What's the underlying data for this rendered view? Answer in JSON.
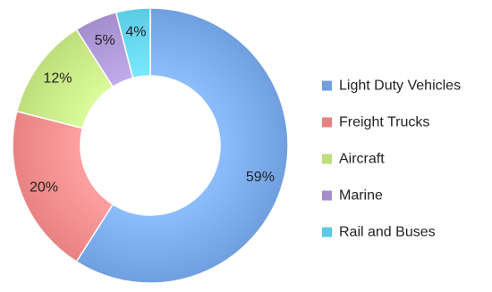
{
  "chart_data": {
    "type": "pie",
    "variant": "donut",
    "title": "",
    "categories": [
      "Light Duty Vehicles",
      "Freight Trucks",
      "Aircraft",
      "Marine",
      "Rail and Buses"
    ],
    "values": [
      59,
      20,
      12,
      5,
      4
    ],
    "labels": [
      "59%",
      "20%",
      "12%",
      "5%",
      "4%"
    ],
    "colors": [
      "#6f9fde",
      "#e88282",
      "#bedd7c",
      "#a48dcc",
      "#5bcbe4"
    ],
    "legend": {
      "position": "right",
      "entries": [
        "Light Duty Vehicles",
        "Freight Trucks",
        "Aircraft",
        "Marine",
        "Rail and Buses"
      ]
    }
  }
}
